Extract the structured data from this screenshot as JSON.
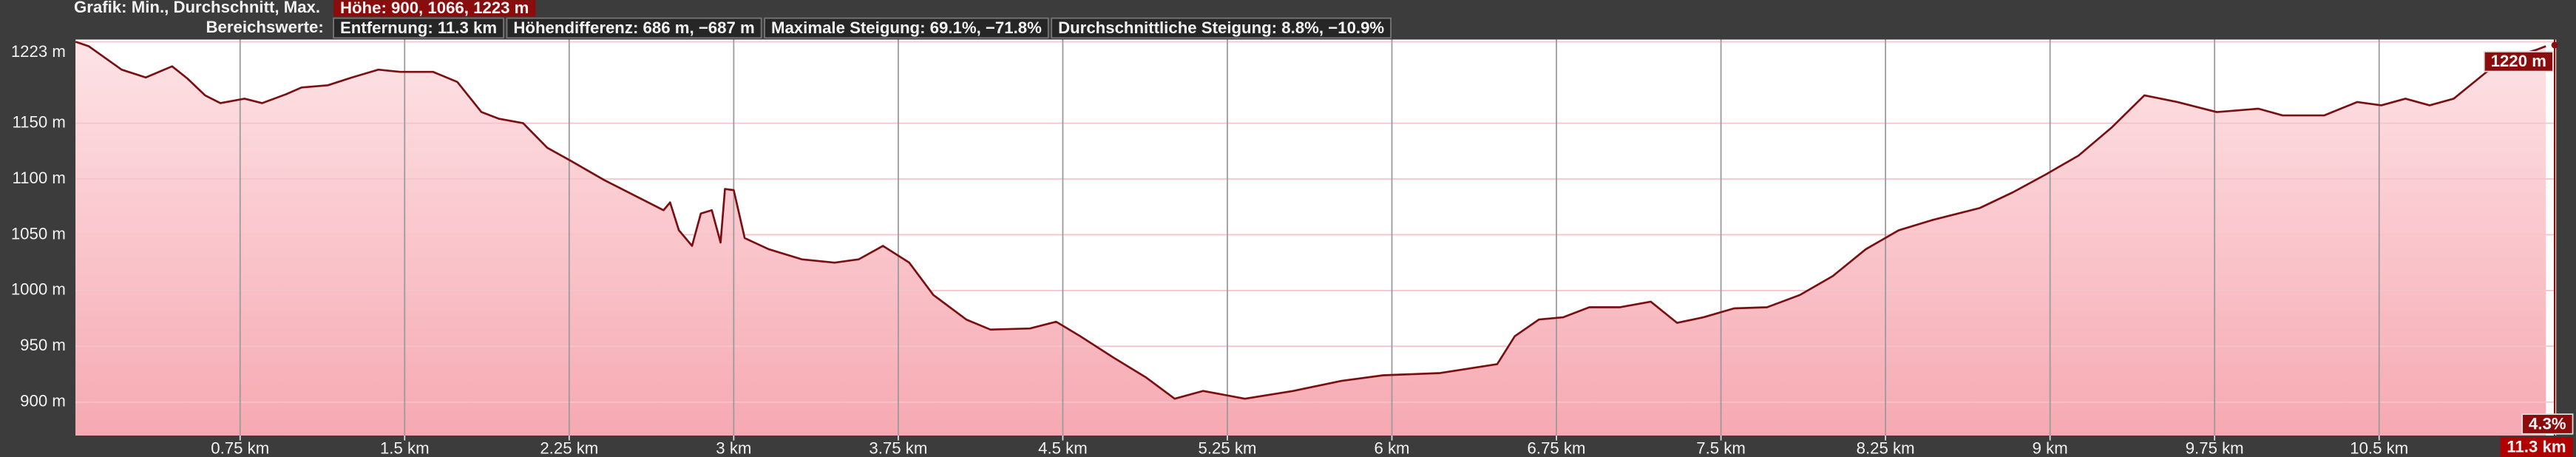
{
  "header": {
    "summary_label": "Grafik: Min., Durchschnitt, Max.",
    "summary_value": "Höhe: 900, 1066, 1223 m",
    "range_label": "Bereichswerte:",
    "range_values": [
      "Entfernung: 11.3 km",
      "Höhendifferenz: 686 m, −687 m",
      "Maximale Steigung: 69.1%, −71.8%",
      "Durchschnittliche Steigung: 8.8%, −10.9%"
    ]
  },
  "chart_data": {
    "type": "area",
    "x": [
      0,
      0.06,
      0.21,
      0.32,
      0.44,
      0.51,
      0.59,
      0.66,
      0.77,
      0.85,
      0.96,
      1.03,
      1.15,
      1.26,
      1.38,
      1.48,
      1.63,
      1.74,
      1.85,
      1.93,
      2.04,
      2.15,
      2.26,
      2.41,
      2.56,
      2.68,
      2.71,
      2.75,
      2.81,
      2.85,
      2.9,
      2.94,
      2.96,
      3.0,
      3.05,
      3.16,
      3.31,
      3.46,
      3.57,
      3.68,
      3.8,
      3.91,
      4.06,
      4.17,
      4.35,
      4.47,
      4.58,
      4.73,
      4.88,
      5.01,
      5.14,
      5.33,
      5.55,
      5.77,
      5.96,
      6.22,
      6.48,
      6.56,
      6.67,
      6.78,
      6.9,
      7.04,
      7.18,
      7.3,
      7.42,
      7.56,
      7.71,
      7.86,
      8.01,
      8.16,
      8.31,
      8.46,
      8.68,
      8.83,
      8.98,
      9.13,
      9.28,
      9.43,
      9.58,
      9.76,
      9.95,
      10.06,
      10.25,
      10.4,
      10.51,
      10.62,
      10.73,
      10.84,
      10.99,
      11.1,
      11.22,
      11.26
    ],
    "series": [
      {
        "color": "#7a0f12",
        "values": [
          1223,
          1219,
          1198,
          1191,
          1201,
          1190,
          1175,
          1168,
          1172,
          1168,
          1176,
          1182,
          1184,
          1191,
          1198,
          1196,
          1196,
          1187,
          1160,
          1154,
          1150,
          1128,
          1116,
          1099,
          1084,
          1072,
          1079,
          1054,
          1040,
          1069,
          1072,
          1043,
          1091,
          1090,
          1047,
          1037,
          1028,
          1025,
          1028,
          1040,
          1025,
          996,
          974,
          965,
          966,
          972,
          959,
          940,
          922,
          903,
          910,
          903,
          910,
          919,
          924,
          926,
          934,
          959,
          974,
          976,
          985,
          985,
          990,
          971,
          976,
          984,
          985,
          996,
          1013,
          1037,
          1054,
          1063,
          1074,
          1088,
          1104,
          1121,
          1146,
          1175,
          1169,
          1160,
          1163,
          1157,
          1157,
          1169,
          1166,
          1172,
          1166,
          1172,
          1196,
          1209,
          1216,
          1219
        ]
      }
    ],
    "xlim": [
      0,
      11.3
    ],
    "xticks": [
      {
        "value": 0.75,
        "label": "0.75 km"
      },
      {
        "value": 1.5,
        "label": "1.5 km"
      },
      {
        "value": 2.25,
        "label": "2.25 km"
      },
      {
        "value": 3,
        "label": "3 km"
      },
      {
        "value": 3.75,
        "label": "3.75 km"
      },
      {
        "value": 4.5,
        "label": "4.5 km"
      },
      {
        "value": 5.25,
        "label": "5.25 km"
      },
      {
        "value": 6,
        "label": "6 km"
      },
      {
        "value": 6.75,
        "label": "6.75 km"
      },
      {
        "value": 7.5,
        "label": "7.5 km"
      },
      {
        "value": 8.25,
        "label": "8.25 km"
      },
      {
        "value": 9,
        "label": "9 km"
      },
      {
        "value": 9.75,
        "label": "9.75 km"
      },
      {
        "value": 10.5,
        "label": "10.5 km"
      }
    ],
    "ylim": [
      870,
      1225
    ],
    "yticks": [
      {
        "value": 1223,
        "label": "1223 m"
      },
      {
        "value": 1150,
        "label": "1150 m"
      },
      {
        "value": 1100,
        "label": "1100 m"
      },
      {
        "value": 1050,
        "label": "1050 m"
      },
      {
        "value": 1000,
        "label": "1000 m"
      },
      {
        "value": 950,
        "label": "950 m"
      },
      {
        "value": 900,
        "label": "900 m"
      }
    ],
    "grid": true,
    "cursor": {
      "x": 11.3,
      "x_label": "11.3 km",
      "elevation": 1220,
      "elevation_label": "1220 m",
      "slope_label": "4.3%"
    }
  }
}
